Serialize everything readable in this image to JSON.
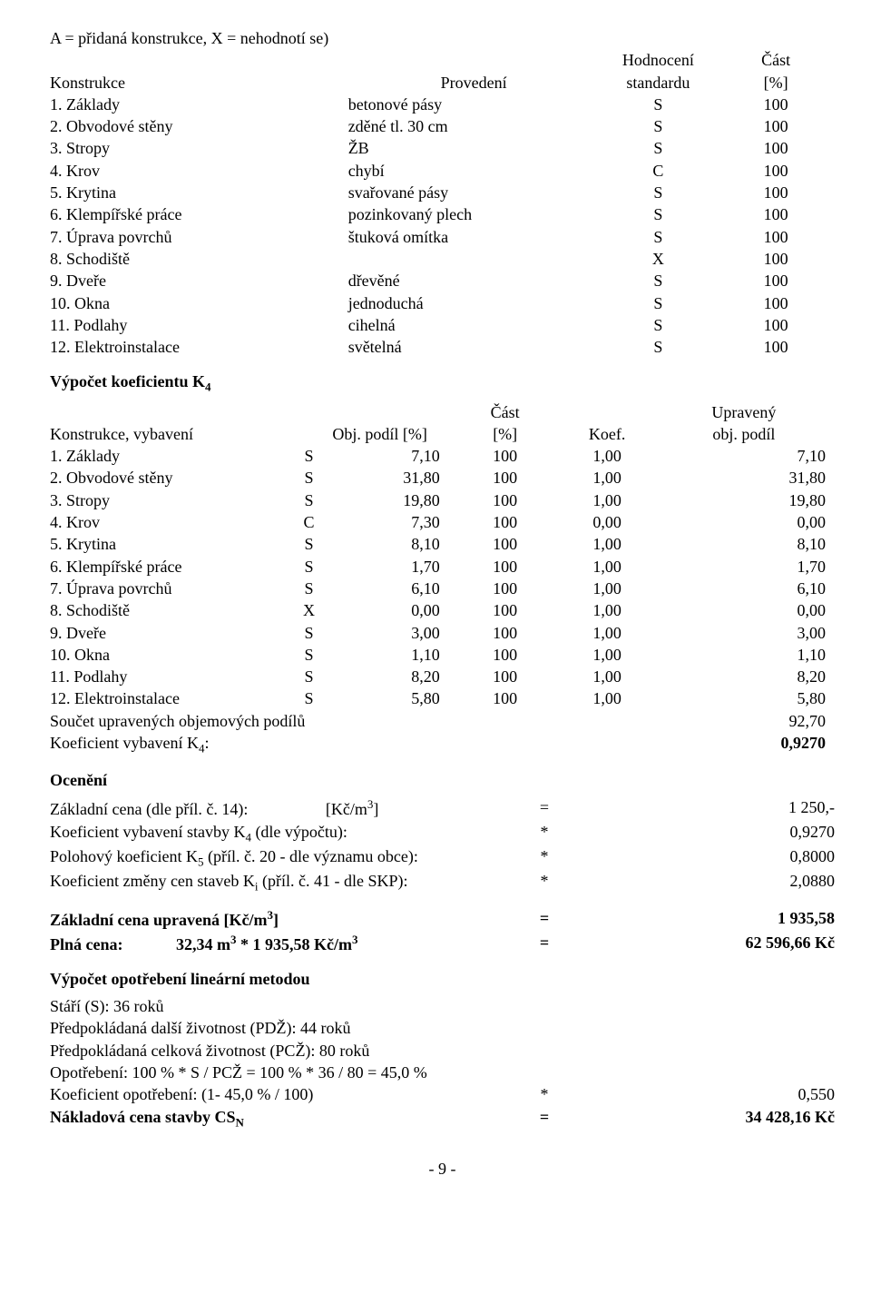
{
  "intro": "A = přidaná konstrukce, X = nehodnotí se)",
  "t1": {
    "headers": {
      "konstrukce": "Konstrukce",
      "provedeni": "Provedení",
      "hodnoceni_l1": "Hodnocení",
      "hodnoceni_l2": "standardu",
      "cast_l1": "Část",
      "cast_l2": "[%]"
    },
    "rows": [
      {
        "label": "1. Základy",
        "prov": "betonové pásy",
        "hodn": "S",
        "cast": "100"
      },
      {
        "label": "2. Obvodové stěny",
        "prov": "zděné tl. 30 cm",
        "hodn": "S",
        "cast": "100"
      },
      {
        "label": "3. Stropy",
        "prov": "ŽB",
        "hodn": "S",
        "cast": "100"
      },
      {
        "label": "4. Krov",
        "prov": "chybí",
        "hodn": "C",
        "cast": "100"
      },
      {
        "label": "5. Krytina",
        "prov": "svařované pásy",
        "hodn": "S",
        "cast": "100"
      },
      {
        "label": "6. Klempířské práce",
        "prov": "pozinkovaný plech",
        "hodn": "S",
        "cast": "100"
      },
      {
        "label": "7. Úprava povrchů",
        "prov": "štuková omítka",
        "hodn": "S",
        "cast": "100"
      },
      {
        "label": "8. Schodiště",
        "prov": "",
        "hodn": "X",
        "cast": "100"
      },
      {
        "label": "9. Dveře",
        "prov": "dřevěné",
        "hodn": "S",
        "cast": "100"
      },
      {
        "label": "10. Okna",
        "prov": "jednoduchá",
        "hodn": "S",
        "cast": "100"
      },
      {
        "label": "11. Podlahy",
        "prov": "cihelná",
        "hodn": "S",
        "cast": "100"
      },
      {
        "label": "12. Elektroinstalace",
        "prov": "světelná",
        "hodn": "S",
        "cast": "100"
      }
    ]
  },
  "k4_heading": "Výpočet koeficientu K",
  "k4_sub": "4",
  "t2": {
    "headers": {
      "konstrukce": "Konstrukce, vybavení",
      "objpodil": "Obj. podíl [%]",
      "cast_l1": "Část",
      "cast_l2": "[%]",
      "koef": "Koef.",
      "upr_l1": "Upravený",
      "upr_l2": "obj. podíl"
    },
    "rows": [
      {
        "label": "1. Základy",
        "obj": "S",
        "podil": "7,10",
        "cast": "100",
        "koef": "1,00",
        "upr": "7,10"
      },
      {
        "label": "2. Obvodové stěny",
        "obj": "S",
        "podil": "31,80",
        "cast": "100",
        "koef": "1,00",
        "upr": "31,80"
      },
      {
        "label": "3. Stropy",
        "obj": "S",
        "podil": "19,80",
        "cast": "100",
        "koef": "1,00",
        "upr": "19,80"
      },
      {
        "label": "4. Krov",
        "obj": "C",
        "podil": "7,30",
        "cast": "100",
        "koef": "0,00",
        "upr": "0,00"
      },
      {
        "label": "5. Krytina",
        "obj": "S",
        "podil": "8,10",
        "cast": "100",
        "koef": "1,00",
        "upr": "8,10"
      },
      {
        "label": "6. Klempířské práce",
        "obj": "S",
        "podil": "1,70",
        "cast": "100",
        "koef": "1,00",
        "upr": "1,70"
      },
      {
        "label": "7. Úprava povrchů",
        "obj": "S",
        "podil": "6,10",
        "cast": "100",
        "koef": "1,00",
        "upr": "6,10"
      },
      {
        "label": "8. Schodiště",
        "obj": "X",
        "podil": "0,00",
        "cast": "100",
        "koef": "1,00",
        "upr": "0,00"
      },
      {
        "label": "9. Dveře",
        "obj": "S",
        "podil": "3,00",
        "cast": "100",
        "koef": "1,00",
        "upr": "3,00"
      },
      {
        "label": "10. Okna",
        "obj": "S",
        "podil": "1,10",
        "cast": "100",
        "koef": "1,00",
        "upr": "1,10"
      },
      {
        "label": "11. Podlahy",
        "obj": "S",
        "podil": "8,20",
        "cast": "100",
        "koef": "1,00",
        "upr": "8,20"
      },
      {
        "label": "12. Elektroinstalace",
        "obj": "S",
        "podil": "5,80",
        "cast": "100",
        "koef": "1,00",
        "upr": "5,80"
      }
    ],
    "sum_label": "Součet upravených objemových podílů",
    "sum_val": "92,70",
    "k4_label": "Koeficient vybavení K",
    "k4_sub": "4",
    "k4_colon": ":",
    "k4_val": "0,9270"
  },
  "oceneni_heading": "Ocenění",
  "oceneni": [
    {
      "label_html": "Základní cena (dle příl. č. 14):&nbsp;&nbsp;&nbsp;&nbsp;&nbsp;&nbsp;&nbsp;&nbsp;&nbsp;&nbsp;&nbsp;&nbsp;&nbsp;&nbsp;&nbsp;&nbsp;&nbsp;&nbsp;&nbsp;[Kč/m<span class='sup'>3</span>]",
      "sign": "=",
      "val": "1 250,-"
    },
    {
      "label_html": "Koeficient vybavení stavby K<span class='sub'>4</span> (dle výpočtu):",
      "sign": "*",
      "val": "0,9270"
    },
    {
      "label_html": "Polohový koeficient K<span class='sub'>5</span> (příl. č. 20 - dle významu obce):",
      "sign": "*",
      "val": "0,8000"
    },
    {
      "label_html": "Koeficient změny cen staveb K<span class='sub'>i</span> (příl. č. 41 - dle SKP):",
      "sign": "*",
      "val": "2,0880"
    }
  ],
  "zcu": {
    "label_html": "Základní cena upravená [Kč/m<span class='sup'>3</span>]",
    "sign": "=",
    "val": "1 935,58",
    "plna_label_html": "Plná cena:&nbsp;&nbsp;&nbsp;&nbsp;&nbsp;&nbsp;&nbsp;&nbsp;&nbsp;&nbsp;&nbsp;&nbsp;&nbsp;32,34 m<span class='sup'>3</span> * 1 935,58 Kč/m<span class='sup'>3</span>",
    "plna_sign": "=",
    "plna_val": "62 596,66 Kč"
  },
  "opotrebeni_heading": "Výpočet opotřebení lineární metodou",
  "opot_lines": [
    "Stáří (S): 36 roků",
    "Předpokládaná další životnost (PDŽ): 44 roků",
    "Předpokládaná celková životnost (PCŽ): 80 roků",
    "Opotřebení: 100 % * S / PCŽ = 100 % * 36 / 80 = 45,0 %"
  ],
  "opot_koef": {
    "label": "Koeficient opotřebení: (1- 45,0 % / 100)",
    "sign": "*",
    "val": "0,550"
  },
  "naklad": {
    "label_html": "Nákladová cena stavby CS<span class='sub'>N</span>",
    "sign": "=",
    "val": "34 428,16 Kč"
  },
  "page_num": "- 9 -"
}
